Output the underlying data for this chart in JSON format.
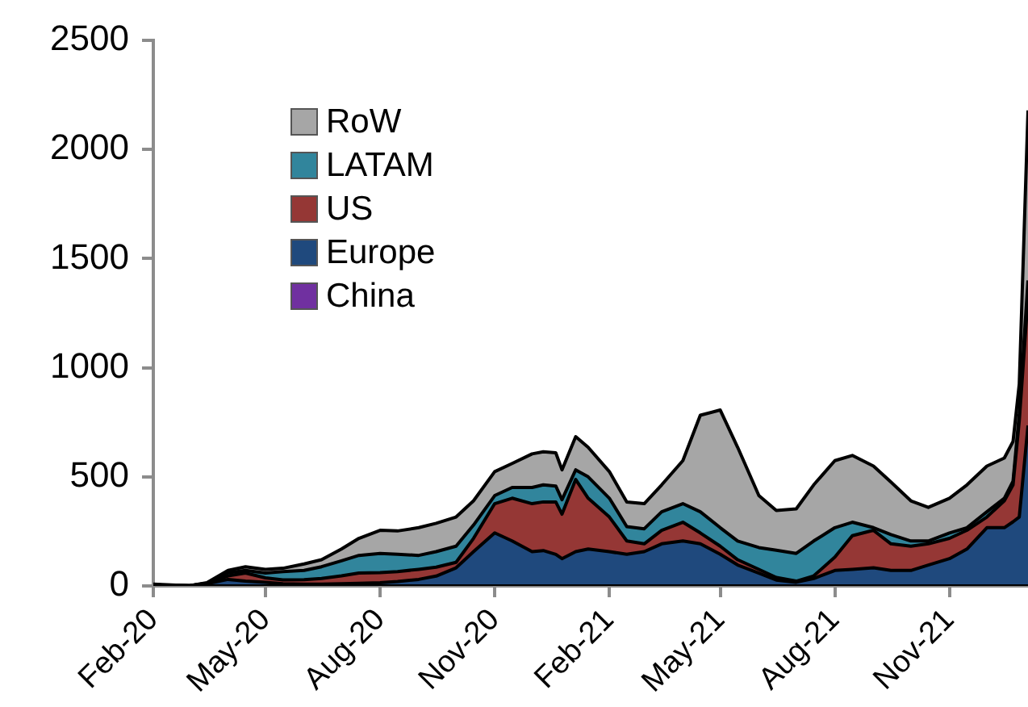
{
  "chart_data": {
    "type": "area",
    "stacked": true,
    "x": [
      "2020-02-01",
      "2020-03-01",
      "2020-03-15",
      "2020-04-01",
      "2020-04-15",
      "2020-05-01",
      "2020-05-15",
      "2020-06-01",
      "2020-06-15",
      "2020-07-01",
      "2020-07-15",
      "2020-08-01",
      "2020-08-15",
      "2020-09-01",
      "2020-09-15",
      "2020-10-01",
      "2020-10-15",
      "2020-11-01",
      "2020-11-15",
      "2020-12-01",
      "2020-12-10",
      "2020-12-20",
      "2020-12-25",
      "2021-01-05",
      "2021-01-15",
      "2021-02-01",
      "2021-02-15",
      "2021-03-01",
      "2021-03-15",
      "2021-04-01",
      "2021-04-15",
      "2021-05-01",
      "2021-05-15",
      "2021-06-01",
      "2021-06-15",
      "2021-07-01",
      "2021-07-15",
      "2021-08-01",
      "2021-08-15",
      "2021-09-01",
      "2021-09-15",
      "2021-10-01",
      "2021-10-15",
      "2021-11-01",
      "2021-11-15",
      "2021-12-01",
      "2021-12-15",
      "2021-12-22",
      "2021-12-27",
      "2022-01-03"
    ],
    "series": [
      {
        "name": "China",
        "color": "#7030a0",
        "values": [
          5,
          1,
          1,
          0,
          0,
          0,
          0,
          0,
          0,
          0,
          0,
          0,
          0,
          0,
          0,
          0,
          0,
          0,
          0,
          0,
          0,
          0,
          0,
          0,
          0,
          0,
          0,
          0,
          0,
          0,
          0,
          0,
          0,
          0,
          0,
          0,
          0,
          0,
          0,
          0,
          0,
          0,
          0,
          0,
          0,
          0,
          0,
          0,
          0,
          0
        ]
      },
      {
        "name": "Europe",
        "color": "#1f497d",
        "values": [
          0,
          0,
          9,
          30,
          22,
          17,
          10,
          8,
          8,
          10,
          12,
          15,
          20,
          30,
          45,
          83,
          157,
          243,
          206,
          157,
          162,
          145,
          125,
          157,
          169,
          157,
          145,
          157,
          193,
          206,
          193,
          145,
          96,
          59,
          27,
          17,
          34,
          71,
          76,
          83,
          71,
          71,
          96,
          125,
          169,
          267,
          267,
          294,
          316,
          735
        ]
      },
      {
        "name": "US",
        "color": "#953735",
        "values": [
          0,
          0,
          2,
          16,
          37,
          20,
          18,
          21,
          26,
          36,
          47,
          46,
          46,
          46,
          41,
          25,
          61,
          134,
          196,
          220,
          223,
          240,
          204,
          331,
          233,
          159,
          61,
          36,
          62,
          86,
          50,
          37,
          24,
          17,
          12,
          5,
          12,
          61,
          154,
          172,
          122,
          111,
          97,
          93,
          86,
          49,
          123,
          169,
          441,
          589
        ]
      },
      {
        "name": "LATAM",
        "color": "#31859c",
        "values": [
          0,
          0,
          0,
          14,
          12,
          22,
          38,
          42,
          54,
          69,
          81,
          88,
          79,
          64,
          71,
          74,
          61,
          37,
          49,
          74,
          78,
          73,
          66,
          44,
          98,
          86,
          66,
          69,
          85,
          85,
          97,
          85,
          86,
          100,
          125,
          127,
          160,
          135,
          62,
          12,
          42,
          24,
          13,
          25,
          12,
          24,
          12,
          17,
          33,
          76
        ]
      },
      {
        "name": "RoW",
        "color": "#a6a6a6",
        "values": [
          3,
          0,
          3,
          11,
          17,
          17,
          15,
          30,
          32,
          54,
          78,
          106,
          107,
          127,
          130,
          134,
          111,
          110,
          110,
          154,
          152,
          152,
          137,
          152,
          135,
          122,
          113,
          115,
          123,
          197,
          442,
          539,
          429,
          238,
          182,
          204,
          257,
          307,
          306,
          282,
          241,
          184,
          154,
          159,
          196,
          209,
          184,
          182,
          136,
          779
        ]
      }
    ],
    "xlim": [
      "2020-02-01",
      "2022-01-03"
    ],
    "xticks": [
      {
        "value": "2020-02-01",
        "label": "Feb-20"
      },
      {
        "value": "2020-05-01",
        "label": "May-20"
      },
      {
        "value": "2020-08-01",
        "label": "Aug-20"
      },
      {
        "value": "2020-11-01",
        "label": "Nov-20"
      },
      {
        "value": "2021-02-01",
        "label": "Feb-21"
      },
      {
        "value": "2021-05-01",
        "label": "May-21"
      },
      {
        "value": "2021-08-01",
        "label": "Aug-21"
      },
      {
        "value": "2021-11-01",
        "label": "Nov-21"
      }
    ],
    "ylim": [
      0,
      2500
    ],
    "yticks": [
      0,
      500,
      1000,
      1500,
      2000,
      2500
    ],
    "legend": "top left"
  }
}
